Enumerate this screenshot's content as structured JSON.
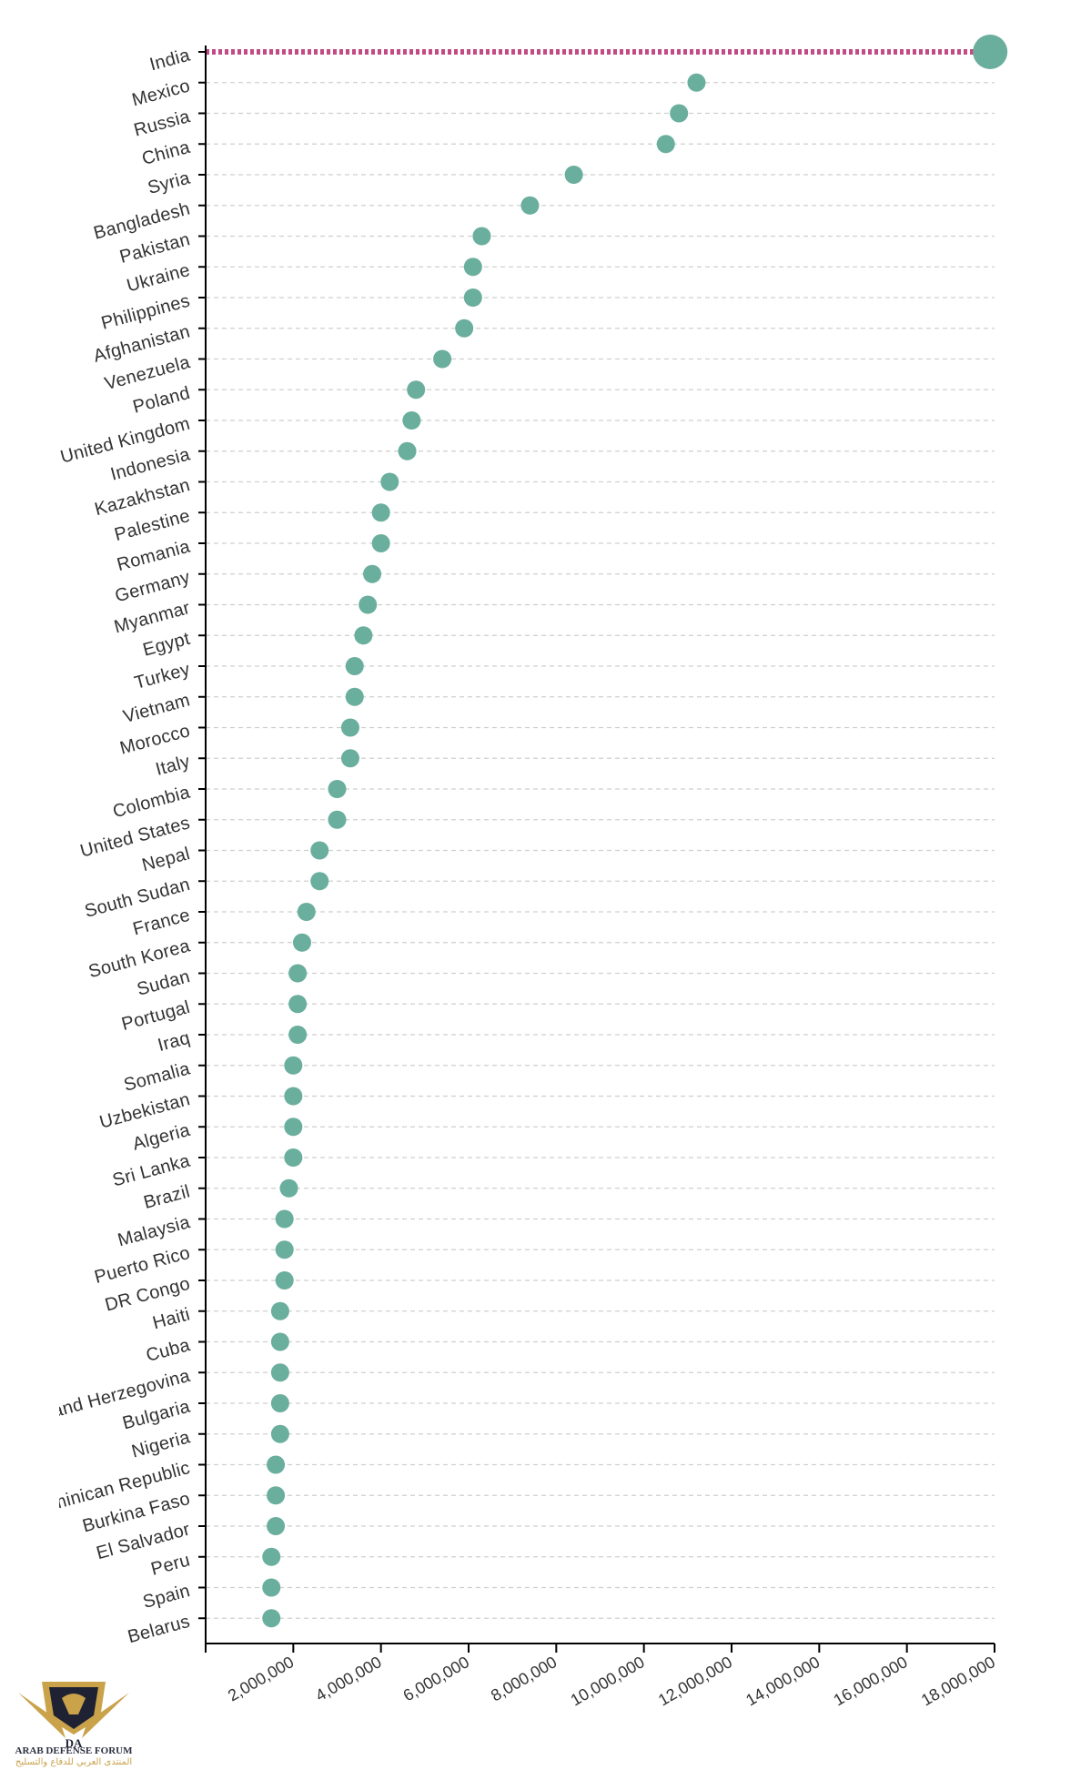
{
  "chart_data": {
    "type": "scatter",
    "title": "",
    "xlabel": "",
    "ylabel": "",
    "xlim": [
      0,
      18000000
    ],
    "x_ticks": [
      0,
      2000000,
      4000000,
      6000000,
      8000000,
      10000000,
      12000000,
      14000000,
      16000000,
      18000000
    ],
    "x_tick_labels": [
      "",
      "2,000,000",
      "4,000,000",
      "6,000,000",
      "8,000,000",
      "10,000,000",
      "12,000,000",
      "14,000,000",
      "16,000,000",
      "18,000,000"
    ],
    "grid": true,
    "highlight": "India",
    "categories": [
      "India",
      "Mexico",
      "Russia",
      "China",
      "Syria",
      "Bangladesh",
      "Pakistan",
      "Ukraine",
      "Philippines",
      "Afghanistan",
      "Venezuela",
      "Poland",
      "United Kingdom",
      "Indonesia",
      "Kazakhstan",
      "Palestine",
      "Romania",
      "Germany",
      "Myanmar",
      "Egypt",
      "Turkey",
      "Vietnam",
      "Morocco",
      "Italy",
      "Colombia",
      "United States",
      "Nepal",
      "South Sudan",
      "France",
      "South Korea",
      "Sudan",
      "Portugal",
      "Iraq",
      "Somalia",
      "Uzbekistan",
      "Algeria",
      "Sri Lanka",
      "Brazil",
      "Malaysia",
      "Puerto Rico",
      "DR Congo",
      "Haiti",
      "Cuba",
      "Bosnia and Herzegovina",
      "Bulgaria",
      "Nigeria",
      "Dominican Republic",
      "Burkina Faso",
      "El Salvador",
      "Peru",
      "Spain",
      "Belarus"
    ],
    "values": [
      17900000,
      11200000,
      10800000,
      10500000,
      8400000,
      7400000,
      6300000,
      6100000,
      6100000,
      5900000,
      5400000,
      4800000,
      4700000,
      4600000,
      4200000,
      4000000,
      4000000,
      3800000,
      3700000,
      3600000,
      3400000,
      3400000,
      3300000,
      3300000,
      3000000,
      3000000,
      2600000,
      2600000,
      2300000,
      2200000,
      2100000,
      2100000,
      2100000,
      2000000,
      2000000,
      2000000,
      2000000,
      1900000,
      1800000,
      1800000,
      1800000,
      1700000,
      1700000,
      1700000,
      1700000,
      1700000,
      1600000,
      1600000,
      1600000,
      1500000,
      1500000,
      1500000
    ],
    "colors": {
      "dot": "#6aae9d",
      "highlight_line": "#c24a85",
      "grid": "#cfcfcf"
    }
  },
  "watermark": {
    "logo_icon": "arab-defense-forum-eagle-logo",
    "logo_letters": "DA",
    "name_en": "ARAB DEFENSE FORUM",
    "name_ar": "المنتدى العربي للدفاع والتسليح"
  }
}
